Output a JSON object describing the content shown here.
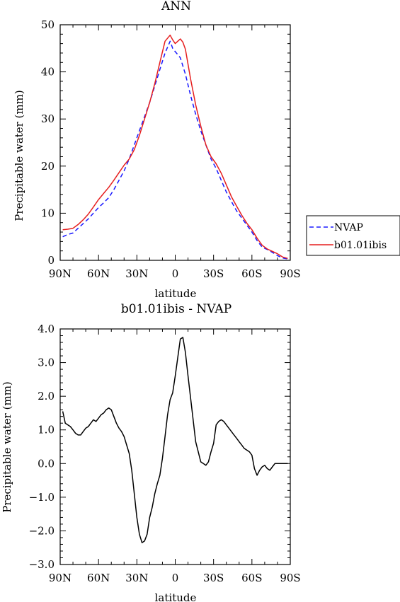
{
  "chart_data": [
    {
      "type": "line",
      "title": "ANN",
      "xlabel": "latitude",
      "ylabel": "Precipitable water (mm)",
      "xlim": [
        -90,
        90
      ],
      "ylim": [
        0,
        50
      ],
      "xticks": [
        -90,
        -60,
        -30,
        0,
        30,
        60,
        90
      ],
      "xtick_labels": [
        "90N",
        "60N",
        "30N",
        "0",
        "30S",
        "60S",
        "90S"
      ],
      "yticks": [
        0,
        10,
        20,
        30,
        40,
        50
      ],
      "ytick_labels": [
        "0",
        "10",
        "20",
        "30",
        "40",
        "50"
      ],
      "legend_position": "right",
      "series": [
        {
          "name": "NVAP",
          "color": "#1a1aff",
          "dash": "dashed",
          "x": [
            -88,
            -84,
            -80,
            -76,
            -72,
            -68,
            -64,
            -60,
            -56,
            -52,
            -48,
            -44,
            -40,
            -36,
            -32,
            -28,
            -24,
            -20,
            -16,
            -12,
            -8,
            -4,
            -2,
            0,
            4,
            8,
            12,
            16,
            20,
            24,
            28,
            32,
            36,
            40,
            44,
            48,
            52,
            56,
            60,
            64,
            68,
            72,
            76,
            80,
            84,
            88
          ],
          "y": [
            5.0,
            5.5,
            5.8,
            6.8,
            7.8,
            8.8,
            10.0,
            11.2,
            12.2,
            13.3,
            15.0,
            17.0,
            19.0,
            21.5,
            24.5,
            27.5,
            30.5,
            33.5,
            37.0,
            40.5,
            44.0,
            46.5,
            45.0,
            44.3,
            43.0,
            39.5,
            35.0,
            31.0,
            27.5,
            24.5,
            21.5,
            19.5,
            17.0,
            14.5,
            12.5,
            10.5,
            9.0,
            7.5,
            6.0,
            4.2,
            2.8,
            2.3,
            1.7,
            1.0,
            0.5,
            0.3
          ]
        },
        {
          "name": "b01.01ibis",
          "color": "#e61e1e",
          "dash": "solid",
          "x": [
            -88,
            -84,
            -80,
            -76,
            -72,
            -68,
            -64,
            -60,
            -56,
            -52,
            -48,
            -44,
            -40,
            -36,
            -32,
            -28,
            -24,
            -20,
            -16,
            -12,
            -8,
            -4,
            -2,
            0,
            2,
            4,
            6,
            8,
            12,
            16,
            20,
            24,
            28,
            32,
            36,
            40,
            44,
            48,
            52,
            56,
            60,
            64,
            68,
            72,
            76,
            80,
            84,
            88
          ],
          "y": [
            6.5,
            6.6,
            6.8,
            7.6,
            8.6,
            9.8,
            11.3,
            12.9,
            14.2,
            15.5,
            17.0,
            18.6,
            20.2,
            21.5,
            23.5,
            26.5,
            30.0,
            33.5,
            37.5,
            42.0,
            46.5,
            47.8,
            46.8,
            46.0,
            46.5,
            47.0,
            46.3,
            44.8,
            38.5,
            33.0,
            28.5,
            24.5,
            22.0,
            20.5,
            18.5,
            16.0,
            13.5,
            11.5,
            9.6,
            7.9,
            6.5,
            4.7,
            3.2,
            2.4,
            1.9,
            1.4,
            0.7,
            0.4
          ]
        }
      ]
    },
    {
      "type": "line",
      "title": "b01.01ibis - NVAP",
      "xlabel": "latitude",
      "ylabel": "Precipitable water (mm)",
      "xlim": [
        -90,
        90
      ],
      "ylim": [
        -3,
        4
      ],
      "xticks": [
        -90,
        -60,
        -30,
        0,
        30,
        60,
        90
      ],
      "xtick_labels": [
        "90N",
        "60N",
        "30N",
        "0",
        "30S",
        "60S",
        "90S"
      ],
      "yticks": [
        -3,
        -2,
        -1,
        0,
        1,
        2,
        3,
        4
      ],
      "ytick_labels": [
        "−3.0",
        "−2.0",
        "−1.0",
        "0.0",
        "1.0",
        "2.0",
        "3.0",
        "4.0"
      ],
      "series": [
        {
          "color": "#000000",
          "dash": "solid",
          "x": [
            -88,
            -86,
            -84,
            -82,
            -80,
            -78,
            -76,
            -74,
            -72,
            -70,
            -68,
            -66,
            -64,
            -62,
            -60,
            -58,
            -56,
            -54,
            -52,
            -50,
            -48,
            -46,
            -44,
            -42,
            -40,
            -38,
            -36,
            -34,
            -32,
            -30,
            -28,
            -26,
            -24,
            -22,
            -20,
            -18,
            -16,
            -14,
            -12,
            -10,
            -8,
            -6,
            -4,
            -2,
            0,
            2,
            4,
            6,
            8,
            10,
            12,
            14,
            16,
            18,
            20,
            22,
            24,
            26,
            28,
            30,
            32,
            34,
            36,
            38,
            40,
            42,
            44,
            46,
            48,
            50,
            52,
            54,
            56,
            58,
            60,
            62,
            64,
            66,
            68,
            70,
            72,
            74,
            76,
            78,
            80,
            82,
            84,
            86,
            88
          ],
          "y": [
            1.55,
            1.2,
            1.15,
            1.1,
            1.0,
            0.9,
            0.85,
            0.85,
            0.95,
            1.05,
            1.1,
            1.2,
            1.3,
            1.25,
            1.35,
            1.45,
            1.5,
            1.6,
            1.65,
            1.6,
            1.4,
            1.2,
            1.05,
            0.95,
            0.8,
            0.55,
            0.3,
            -0.2,
            -0.9,
            -1.6,
            -2.1,
            -2.35,
            -2.3,
            -2.1,
            -1.6,
            -1.3,
            -0.9,
            -0.6,
            -0.35,
            0.15,
            0.8,
            1.45,
            1.9,
            2.1,
            2.6,
            3.15,
            3.7,
            3.75,
            3.3,
            2.6,
            1.95,
            1.3,
            0.65,
            0.35,
            0.05,
            0.0,
            -0.05,
            0.05,
            0.35,
            0.6,
            1.15,
            1.25,
            1.3,
            1.25,
            1.15,
            1.05,
            0.95,
            0.85,
            0.75,
            0.65,
            0.55,
            0.45,
            0.4,
            0.35,
            0.25,
            -0.15,
            -0.35,
            -0.2,
            -0.1,
            -0.05,
            -0.15,
            -0.2,
            -0.1,
            0.0,
            0.0,
            0.0,
            0.0,
            0.0,
            0.0
          ]
        }
      ]
    }
  ],
  "legend_items": [
    {
      "label": "NVAP",
      "color": "#1a1aff",
      "dash": "dashed"
    },
    {
      "label": "b01.01ibis",
      "color": "#e61e1e",
      "dash": "solid"
    }
  ]
}
